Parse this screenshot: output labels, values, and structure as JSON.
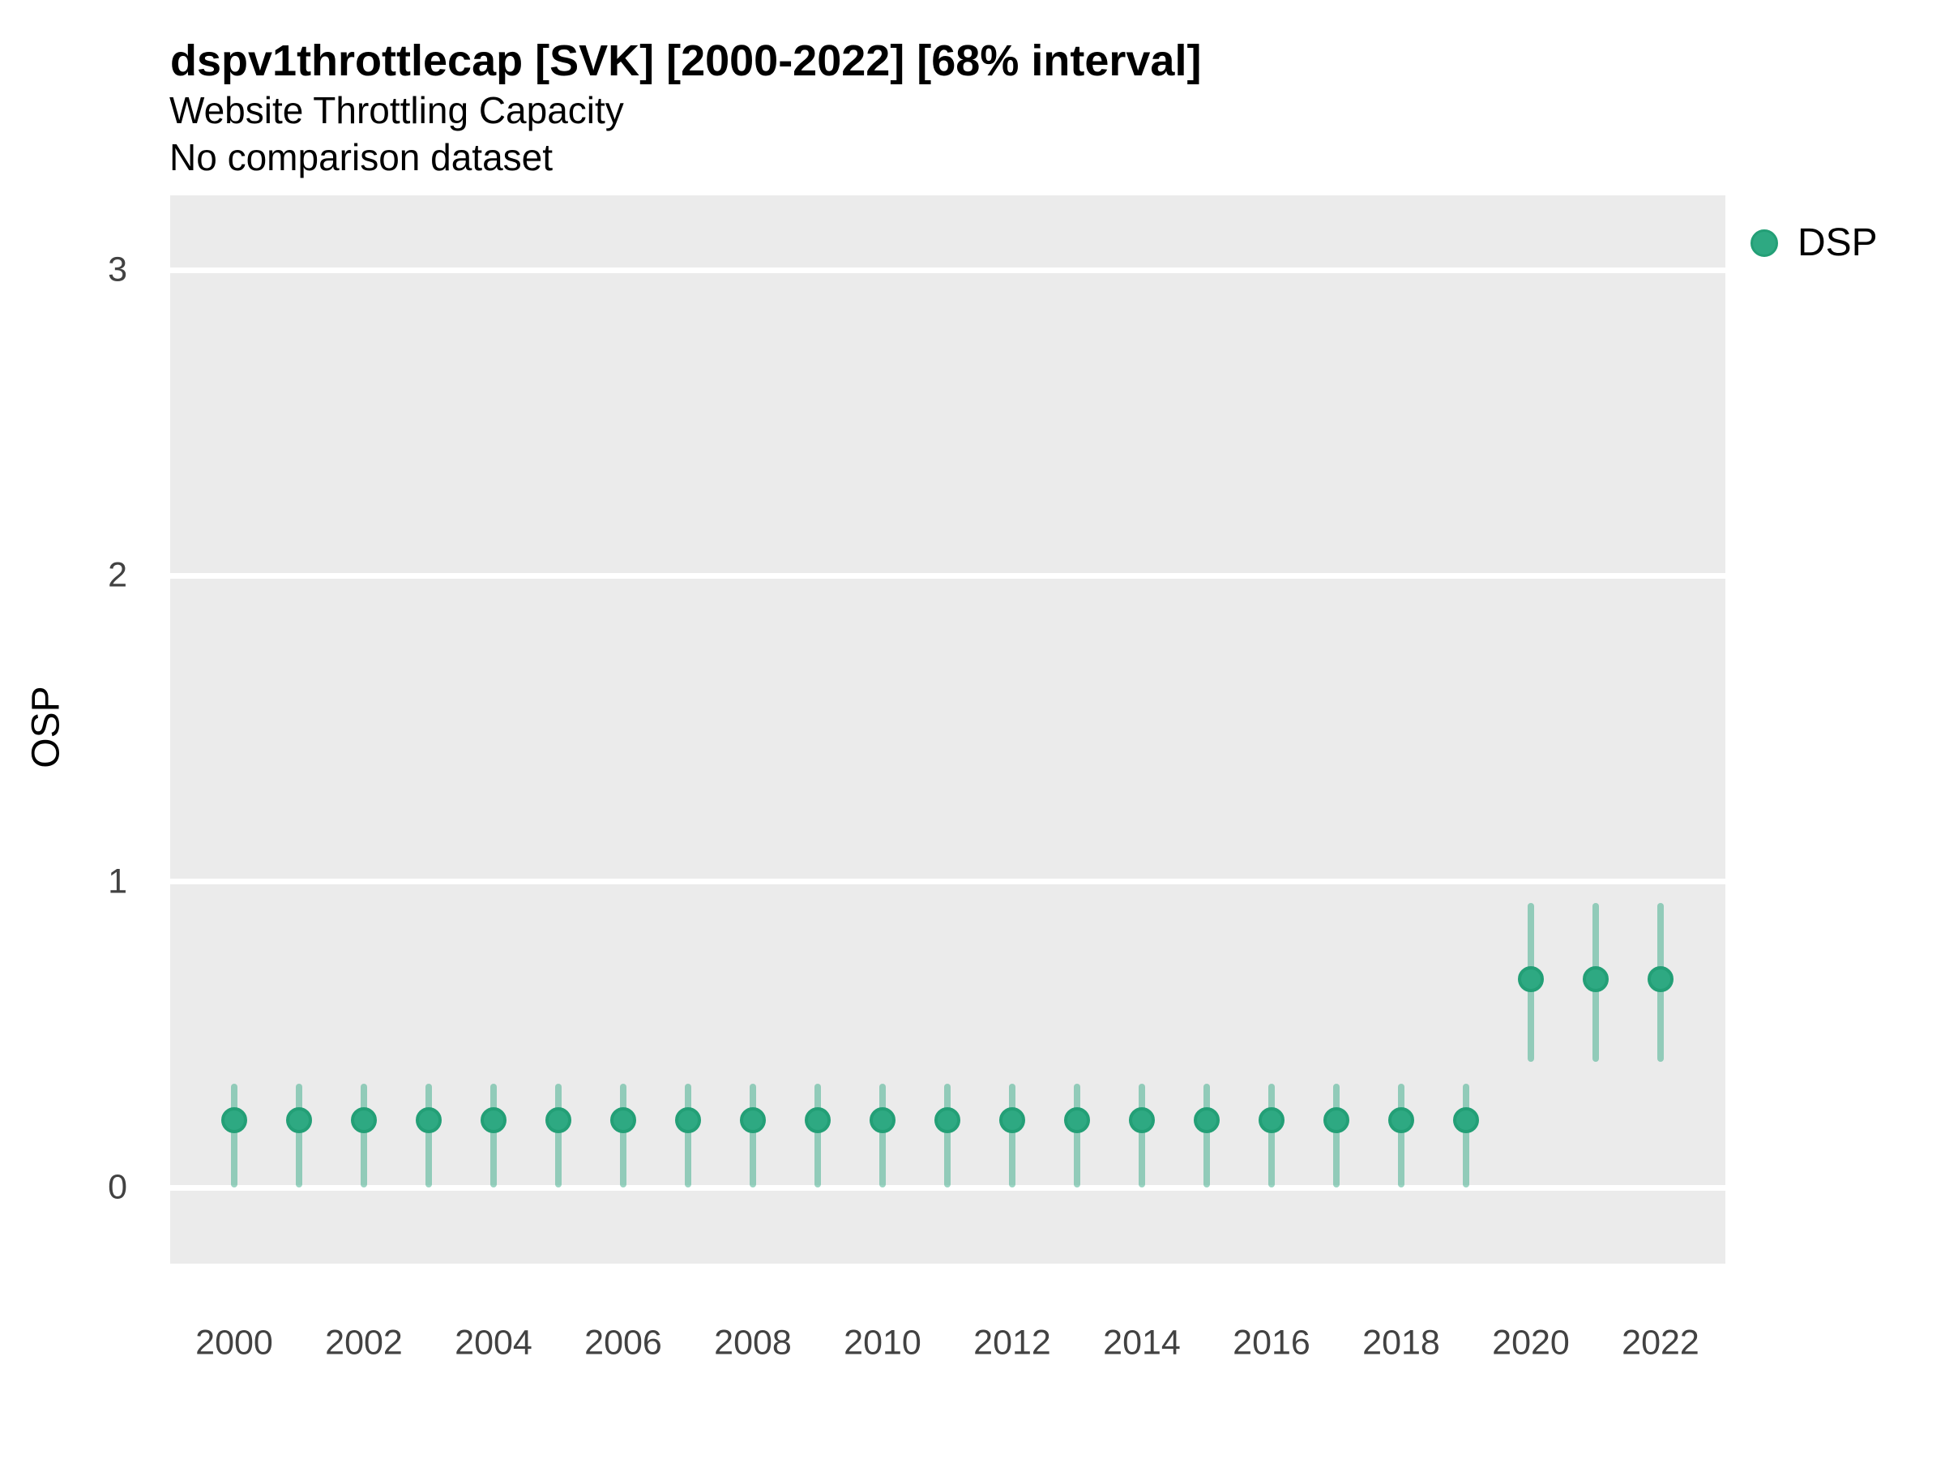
{
  "header": {
    "title": "dspv1throttlecap [SVK] [2000-2022] [68% interval]",
    "subtitle": "Website Throttling Capacity",
    "note": "No comparison dataset"
  },
  "axes": {
    "y_title": "OSP",
    "x_title": ""
  },
  "legend": {
    "position": "right",
    "items": [
      {
        "label": "DSP",
        "color": "#2EA982"
      }
    ]
  },
  "colors": {
    "panel_background": "#EBEBEB",
    "gridline": "#FFFFFF",
    "point_fill": "#2EA982",
    "point_stroke": "#239F76",
    "interval_bar": "rgba(46,167,130,0.48)",
    "tick_text": "#424242",
    "text": "#000000"
  },
  "chart_data": {
    "type": "scatter",
    "title": "dspv1throttlecap [SVK] [2000-2022] [68% interval]",
    "subtitle": "Website Throttling Capacity",
    "note": "No comparison dataset",
    "xlabel": "",
    "ylabel": "OSP",
    "interval": "68%",
    "grid": "horizontal-major-only",
    "legend_position": "right",
    "x_range": [
      1999,
      2023
    ],
    "ylim": [
      -0.25,
      3.25
    ],
    "y_ticks": [
      0,
      1,
      2,
      3
    ],
    "x_ticks": [
      2000,
      2002,
      2004,
      2006,
      2008,
      2010,
      2012,
      2014,
      2016,
      2018,
      2020,
      2022
    ],
    "series": [
      {
        "name": "DSP",
        "color": "#2EA982",
        "points": [
          {
            "year": 2000,
            "value": 0.22,
            "lower": 0.0,
            "upper": 0.34
          },
          {
            "year": 2001,
            "value": 0.22,
            "lower": 0.0,
            "upper": 0.34
          },
          {
            "year": 2002,
            "value": 0.22,
            "lower": 0.0,
            "upper": 0.34
          },
          {
            "year": 2003,
            "value": 0.22,
            "lower": 0.0,
            "upper": 0.34
          },
          {
            "year": 2004,
            "value": 0.22,
            "lower": 0.0,
            "upper": 0.34
          },
          {
            "year": 2005,
            "value": 0.22,
            "lower": 0.0,
            "upper": 0.34
          },
          {
            "year": 2006,
            "value": 0.22,
            "lower": 0.0,
            "upper": 0.34
          },
          {
            "year": 2007,
            "value": 0.22,
            "lower": 0.0,
            "upper": 0.34
          },
          {
            "year": 2008,
            "value": 0.22,
            "lower": 0.0,
            "upper": 0.34
          },
          {
            "year": 2009,
            "value": 0.22,
            "lower": 0.0,
            "upper": 0.34
          },
          {
            "year": 2010,
            "value": 0.22,
            "lower": 0.0,
            "upper": 0.34
          },
          {
            "year": 2011,
            "value": 0.22,
            "lower": 0.0,
            "upper": 0.34
          },
          {
            "year": 2012,
            "value": 0.22,
            "lower": 0.0,
            "upper": 0.34
          },
          {
            "year": 2013,
            "value": 0.22,
            "lower": 0.0,
            "upper": 0.34
          },
          {
            "year": 2014,
            "value": 0.22,
            "lower": 0.0,
            "upper": 0.34
          },
          {
            "year": 2015,
            "value": 0.22,
            "lower": 0.0,
            "upper": 0.34
          },
          {
            "year": 2016,
            "value": 0.22,
            "lower": 0.0,
            "upper": 0.34
          },
          {
            "year": 2017,
            "value": 0.22,
            "lower": 0.0,
            "upper": 0.34
          },
          {
            "year": 2018,
            "value": 0.22,
            "lower": 0.0,
            "upper": 0.34
          },
          {
            "year": 2019,
            "value": 0.22,
            "lower": 0.0,
            "upper": 0.34
          },
          {
            "year": 2020,
            "value": 0.68,
            "lower": 0.41,
            "upper": 0.93
          },
          {
            "year": 2021,
            "value": 0.68,
            "lower": 0.41,
            "upper": 0.93
          },
          {
            "year": 2022,
            "value": 0.68,
            "lower": 0.41,
            "upper": 0.93
          }
        ]
      }
    ]
  }
}
